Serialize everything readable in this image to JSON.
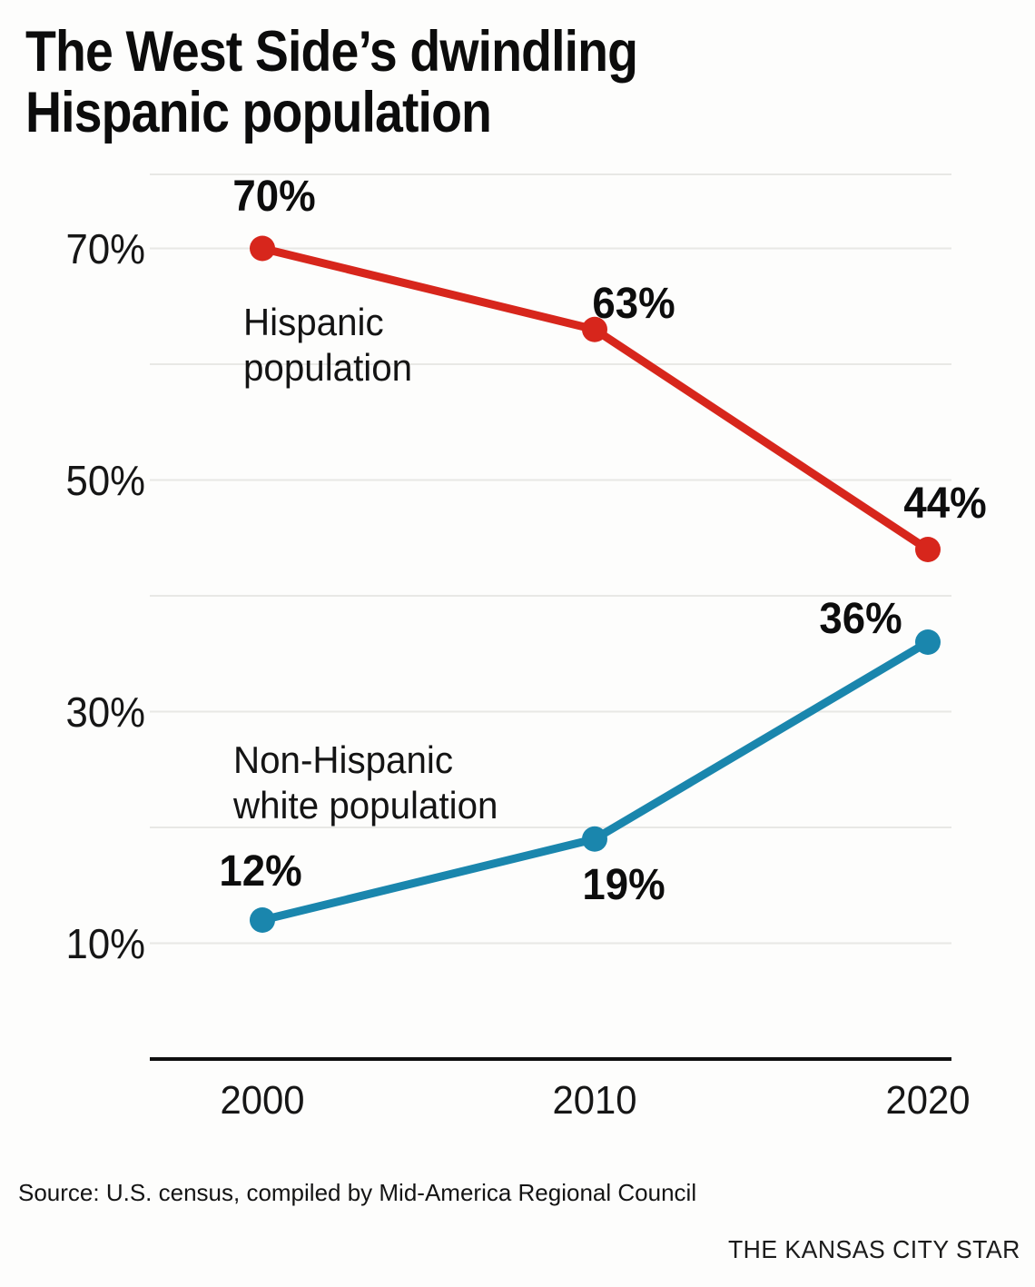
{
  "title": {
    "line1": "The West Side’s dwindling",
    "line2": "Hispanic population"
  },
  "source": "Source: U.S. census, compiled by Mid-America Regional Council",
  "attribution": "THE KANSAS CITY STAR",
  "colors": {
    "hispanic_red": "#d7261c",
    "non_hispanic_blue": "#1a86ad",
    "gridline": "#e8e8e5",
    "axis": "#0f0f0f"
  },
  "chart_data": {
    "type": "line",
    "x": [
      2000,
      2010,
      2020
    ],
    "x_tick_labels": [
      "2000",
      "2010",
      "2020"
    ],
    "ylim": [
      0,
      76
    ],
    "grid": true,
    "y_gridlines": [
      10,
      20,
      30,
      40,
      50,
      60,
      70
    ],
    "y_ticks": [
      {
        "value": 70,
        "label": "70%"
      },
      {
        "value": 50,
        "label": "50%"
      },
      {
        "value": 30,
        "label": "30%"
      },
      {
        "value": 10,
        "label": "10%"
      }
    ],
    "legend_position": "inline-labels",
    "series": [
      {
        "name": "Hispanic population",
        "label_lines": [
          "Hispanic",
          "population"
        ],
        "color": "#d7261c",
        "values": [
          70,
          63,
          44
        ],
        "point_labels": [
          "70%",
          "63%",
          "44%"
        ]
      },
      {
        "name": "Non-Hispanic white population",
        "label_lines": [
          "Non-Hispanic",
          "white population"
        ],
        "color": "#1a86ad",
        "values": [
          12,
          19,
          36
        ],
        "point_labels": [
          "12%",
          "19%",
          "36%"
        ]
      }
    ]
  }
}
